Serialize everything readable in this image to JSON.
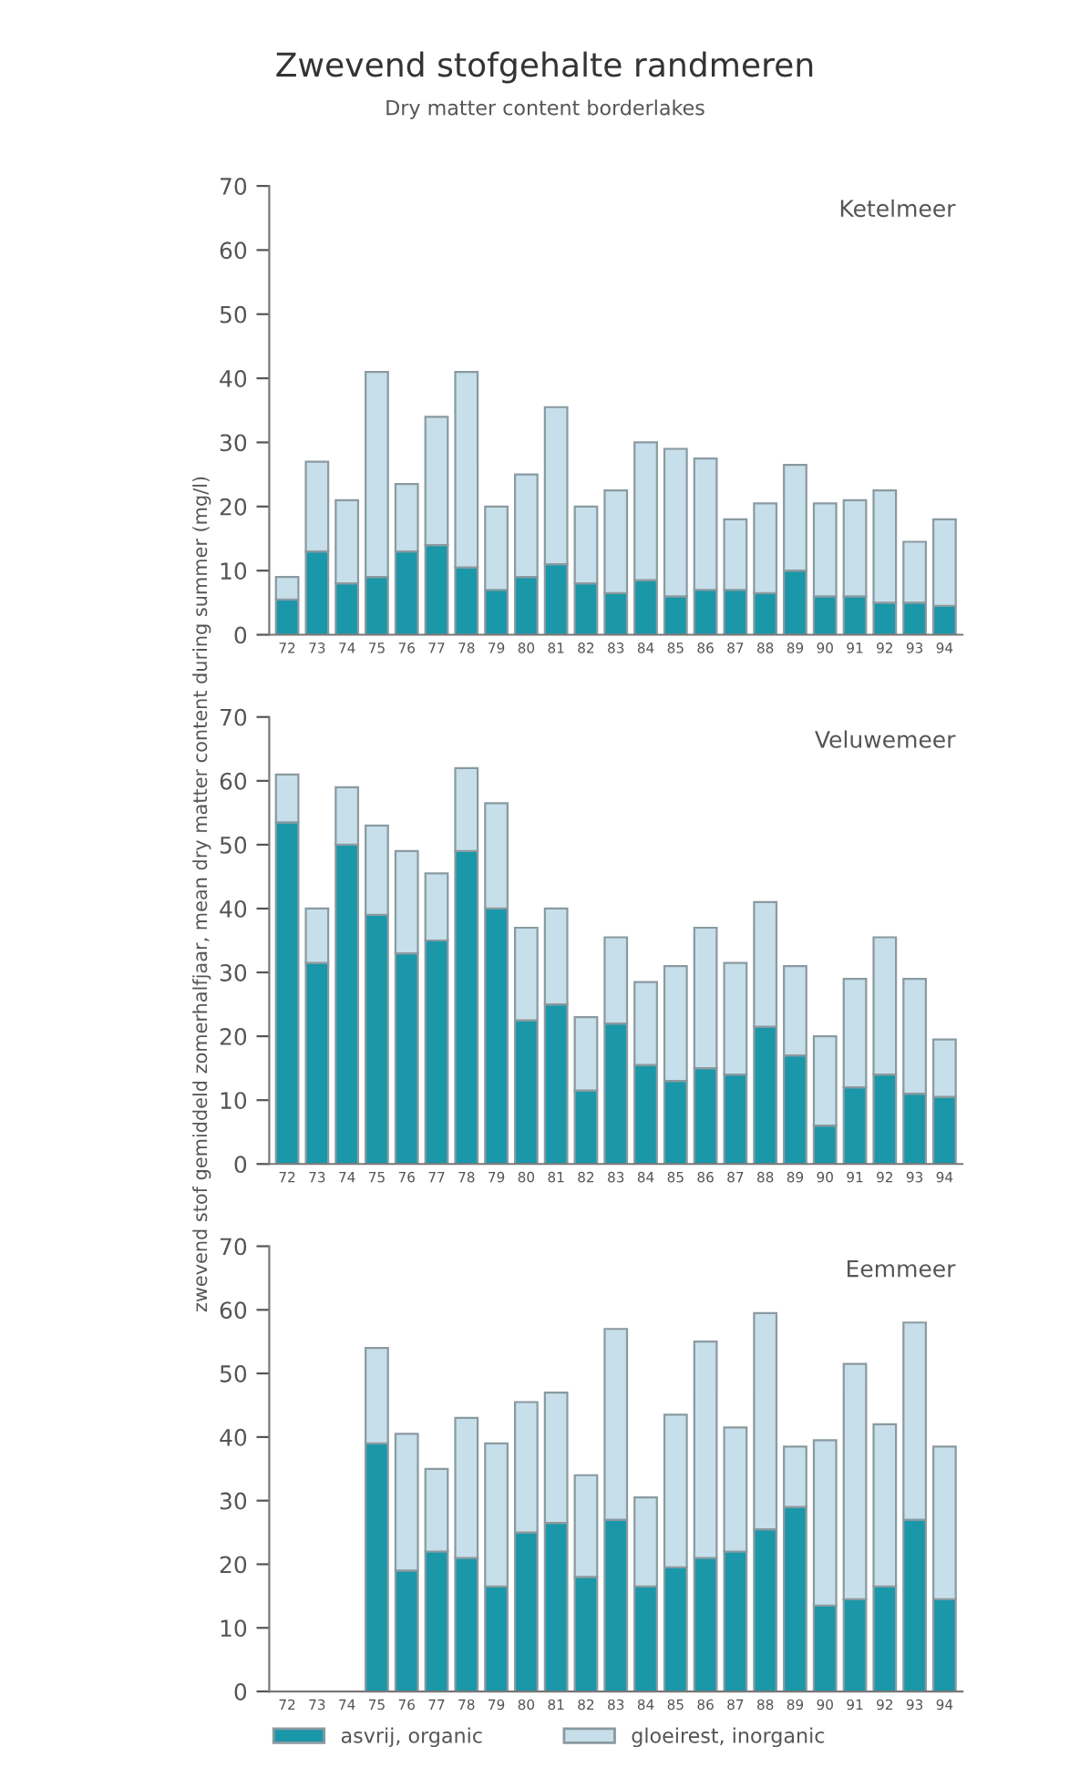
{
  "chart_data": [
    {
      "type": "bar",
      "title": "Zwevend stofgehalte randmeren",
      "subtitle": "Dry matter content borderlakes",
      "annotations": [
        "Ketelmeer"
      ],
      "stacked": true,
      "categories": [
        "72",
        "73",
        "74",
        "75",
        "76",
        "77",
        "78",
        "79",
        "80",
        "81",
        "82",
        "83",
        "84",
        "85",
        "86",
        "87",
        "88",
        "89",
        "90",
        "91",
        "92",
        "93",
        "94"
      ],
      "series": [
        {
          "color": "#1a97a9",
          "values": [
            5.5,
            13,
            8,
            9,
            13,
            14,
            10.5,
            7,
            9,
            11,
            8,
            6.5,
            8.5,
            6,
            7,
            7,
            6.5,
            10,
            6,
            6,
            5,
            5,
            4.5
          ]
        },
        {
          "color": "#c6dfea",
          "values": [
            3.5,
            14,
            13,
            32,
            10.5,
            20,
            30.5,
            13,
            16,
            24.5,
            12,
            16,
            21.5,
            23,
            20.5,
            11,
            14,
            16.5,
            14.5,
            15,
            17.5,
            9.5,
            13.5
          ]
        }
      ],
      "ylim": [
        0,
        70
      ],
      "yticks": [
        0,
        10,
        20,
        30,
        40,
        50,
        60,
        70
      ],
      "grid": false,
      "legend": false
    },
    {
      "type": "bar",
      "ylabel": "zwevend stof gemiddeld zomerhalfjaar, mean dry matter content during summer (mg/l)",
      "annotations": [
        "Veluwemeer"
      ],
      "stacked": true,
      "categories": [
        "72",
        "73",
        "74",
        "75",
        "76",
        "77",
        "78",
        "79",
        "80",
        "81",
        "82",
        "83",
        "84",
        "85",
        "86",
        "87",
        "88",
        "89",
        "90",
        "91",
        "92",
        "93",
        "94"
      ],
      "series": [
        {
          "color": "#1a97a9",
          "values": [
            53.5,
            31.5,
            50,
            39,
            33,
            35,
            49,
            40,
            22.5,
            25,
            11.5,
            22,
            15.5,
            13,
            15,
            14,
            21.5,
            17,
            6,
            12,
            14,
            11,
            10.5
          ]
        },
        {
          "color": "#c6dfea",
          "values": [
            7.5,
            8.5,
            9,
            14,
            16,
            10.5,
            13,
            16.5,
            14.5,
            15,
            11.5,
            13.5,
            13,
            18,
            22,
            17.5,
            19.5,
            14,
            14,
            17,
            21.5,
            18,
            9
          ]
        }
      ],
      "ylim": [
        0,
        70
      ],
      "yticks": [
        0,
        10,
        20,
        30,
        40,
        50,
        60,
        70
      ],
      "grid": false,
      "legend": false
    },
    {
      "type": "bar",
      "annotations": [
        "Eemmeer"
      ],
      "stacked": true,
      "categories": [
        "72",
        "73",
        "74",
        "75",
        "76",
        "77",
        "78",
        "79",
        "80",
        "81",
        "82",
        "83",
        "84",
        "85",
        "86",
        "87",
        "88",
        "89",
        "90",
        "91",
        "92",
        "93",
        "94"
      ],
      "series": [
        {
          "name": "asvrij, organic",
          "color": "#1a97a9",
          "values": [
            null,
            null,
            null,
            39,
            19,
            22,
            21,
            16.5,
            25,
            26.5,
            18,
            27,
            16.5,
            19.5,
            21,
            22,
            25.5,
            29,
            13.5,
            14.5,
            16.5,
            27,
            14.5
          ]
        },
        {
          "name": "gloeirest, inorganic",
          "color": "#c6dfea",
          "values": [
            null,
            null,
            null,
            15,
            21.5,
            13,
            22,
            22.5,
            20.5,
            20.5,
            16,
            30,
            14,
            24,
            34,
            19.5,
            34,
            9.5,
            26,
            37,
            25.5,
            31,
            24
          ]
        }
      ],
      "ylim": [
        0,
        70
      ],
      "yticks": [
        0,
        10,
        20,
        30,
        40,
        50,
        60,
        70
      ],
      "grid": false,
      "legend": "bottom"
    }
  ]
}
